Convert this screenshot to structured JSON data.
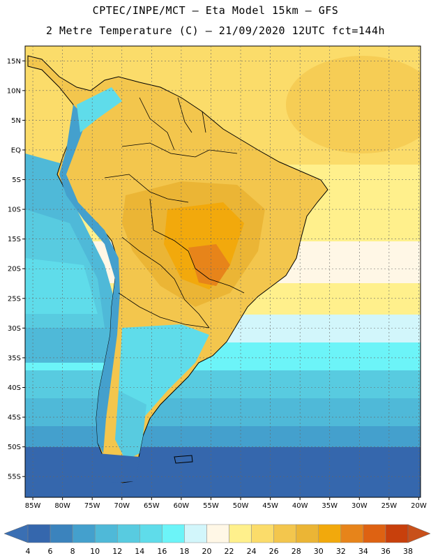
{
  "header": {
    "line1": "CPTEC/INPE/MCT –  Eta Model 15km – GFS",
    "line2": "2 Metre Temperature (C) – 21/09/2020 12UTC fct=144h"
  },
  "map": {
    "lat_labels": [
      "15N",
      "10N",
      "5N",
      "EQ",
      "5S",
      "10S",
      "15S",
      "20S",
      "25S",
      "30S",
      "35S",
      "40S",
      "45S",
      "50S",
      "55S"
    ],
    "lon_labels": [
      "85W",
      "80W",
      "75W",
      "70W",
      "65W",
      "60W",
      "55W",
      "50W",
      "45W",
      "40W",
      "35W",
      "30W",
      "25W",
      "20W"
    ],
    "lat_values": [
      15,
      10,
      5,
      0,
      -5,
      -10,
      -15,
      -20,
      -25,
      -30,
      -35,
      -40,
      -45,
      -50,
      -55
    ],
    "lon_values": [
      -85,
      -80,
      -75,
      -70,
      -65,
      -60,
      -55,
      -50,
      -45,
      -40,
      -35,
      -30,
      -25,
      -20
    ]
  },
  "colorbar": {
    "labels": [
      "4",
      "6",
      "8",
      "10",
      "12",
      "14",
      "16",
      "18",
      "20",
      "22",
      "24",
      "26",
      "28",
      "30",
      "32",
      "34",
      "36",
      "38"
    ],
    "low_color": "#3a6fb3",
    "high_color": "#c8501a",
    "colors": [
      "#3567ad",
      "#3b83bd",
      "#44a0cd",
      "#4fb9d8",
      "#58cbe0",
      "#5fdcea",
      "#6cf4f8",
      "#d2f6fb",
      "#fff7e6",
      "#fff08c",
      "#fbdc6a",
      "#f3c64d",
      "#ebb535",
      "#f2a90c",
      "#e7841a",
      "#de6212",
      "#c8400c"
    ]
  }
}
